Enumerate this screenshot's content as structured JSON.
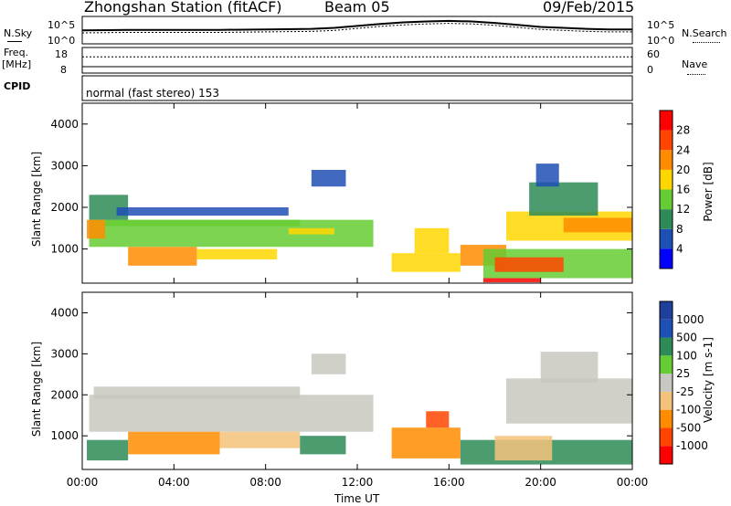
{
  "header": {
    "station": "Zhongshan Station (fitACF)",
    "beam": "Beam 05",
    "date": "09/Feb/2015"
  },
  "left_labels": {
    "nsky": "N.Sky",
    "freq": "Freq.",
    "freq_unit": "[MHz]",
    "cpid": "CPID"
  },
  "right_labels": {
    "nsearch": "N.Search",
    "nave": "Nave"
  },
  "cpid_text": "normal (fast stereo) 153",
  "colors": {
    "power": [
      "#0000ff",
      "#1e4fb4",
      "#2e8b57",
      "#66cc33",
      "#ffd700",
      "#ff8c00",
      "#ff4500",
      "#ff0000"
    ],
    "velocity": [
      "#ff0000",
      "#ff4500",
      "#ff8c00",
      "#f5c27a",
      "#c8c8c0",
      "#66cc33",
      "#2e8b57",
      "#1e4fb4",
      "#1e3f9c"
    ]
  },
  "chart_data": [
    {
      "type": "line",
      "panel": "noise",
      "yticks_left": [
        "10^5",
        "10^0"
      ],
      "yticks_right": [
        "10^5",
        "10^0"
      ],
      "series": [
        {
          "name": "N.Sky",
          "x": [
            0,
            2,
            4,
            6,
            8,
            10,
            11,
            12,
            13,
            14,
            15,
            16,
            17,
            18,
            19,
            20,
            21,
            22,
            23,
            24
          ],
          "y": [
            2.7,
            2.8,
            2.8,
            2.8,
            2.9,
            3.0,
            3.2,
            3.6,
            4.0,
            4.3,
            4.5,
            4.6,
            4.5,
            4.2,
            3.8,
            3.4,
            3.2,
            3.0,
            2.9,
            2.9
          ]
        },
        {
          "name": "N.Search",
          "x": [
            0,
            2,
            4,
            6,
            8,
            10,
            11,
            12,
            13,
            14,
            15,
            16,
            17,
            18,
            19,
            20,
            21,
            22,
            23,
            24
          ],
          "y": [
            2.2,
            2.3,
            2.3,
            2.3,
            2.4,
            2.5,
            2.7,
            3.1,
            3.5,
            3.8,
            4.0,
            4.1,
            4.0,
            3.7,
            3.3,
            2.9,
            2.7,
            2.5,
            2.4,
            2.4
          ]
        }
      ]
    },
    {
      "type": "line",
      "panel": "frequency",
      "yticks_left": [
        "18",
        "8"
      ],
      "yticks_right": [
        "60",
        "0"
      ],
      "series": [
        {
          "name": "Freq.",
          "x": [
            0,
            24
          ],
          "y": [
            10.5,
            10.5
          ]
        },
        {
          "name": "Nave",
          "x": [
            0,
            24
          ],
          "y": [
            38,
            38
          ]
        }
      ]
    },
    {
      "type": "heatmap",
      "panel": "power",
      "xlabel": "",
      "ylabel": "Slant Range [km]",
      "xlim": [
        0,
        24
      ],
      "ylim": [
        180,
        4500
      ],
      "yticks": [
        1000,
        2000,
        3000,
        4000
      ],
      "colorbar_label": "Power [dB]",
      "colorbar_ticks": [
        4,
        8,
        12,
        16,
        20,
        24,
        28
      ],
      "colorbar_range": [
        0,
        32
      ],
      "regions": [
        {
          "x0": 0.3,
          "x1": 12.7,
          "y0": 1050,
          "y1": 1700,
          "v": 12
        },
        {
          "x0": 1.0,
          "x1": 9.5,
          "y0": 1550,
          "y1": 1700,
          "v": 14
        },
        {
          "x0": 9.0,
          "x1": 11.0,
          "y0": 1350,
          "y1": 1500,
          "v": 18
        },
        {
          "x0": 0.3,
          "x1": 2.0,
          "y0": 1700,
          "y1": 2300,
          "v": 10
        },
        {
          "x0": 1.5,
          "x1": 9.0,
          "y0": 1800,
          "y1": 2000,
          "v": 6
        },
        {
          "x0": 2.0,
          "x1": 5.0,
          "y0": 600,
          "y1": 1050,
          "v": 20
        },
        {
          "x0": 5.0,
          "x1": 8.5,
          "y0": 750,
          "y1": 1000,
          "v": 16
        },
        {
          "x0": 0.2,
          "x1": 1.0,
          "y0": 1250,
          "y1": 1700,
          "v": 22
        },
        {
          "x0": 10.0,
          "x1": 11.5,
          "y0": 2500,
          "y1": 2900,
          "v": 6
        },
        {
          "x0": 13.5,
          "x1": 16.5,
          "y0": 450,
          "y1": 900,
          "v": 18
        },
        {
          "x0": 14.5,
          "x1": 16.0,
          "y0": 900,
          "y1": 1500,
          "v": 16
        },
        {
          "x0": 16.5,
          "x1": 18.5,
          "y0": 600,
          "y1": 1100,
          "v": 20
        },
        {
          "x0": 17.5,
          "x1": 24.0,
          "y0": 300,
          "y1": 1000,
          "v": 14
        },
        {
          "x0": 18.0,
          "x1": 21.0,
          "y0": 450,
          "y1": 800,
          "v": 24
        },
        {
          "x0": 18.5,
          "x1": 24.0,
          "y0": 1200,
          "y1": 1900,
          "v": 18
        },
        {
          "x0": 21.0,
          "x1": 24.0,
          "y0": 1400,
          "y1": 1750,
          "v": 22
        },
        {
          "x0": 19.5,
          "x1": 22.5,
          "y0": 1800,
          "y1": 2600,
          "v": 8
        },
        {
          "x0": 19.8,
          "x1": 20.8,
          "y0": 2500,
          "y1": 3050,
          "v": 6
        },
        {
          "x0": 17.5,
          "x1": 20.0,
          "y0": 200,
          "y1": 300,
          "v": 28
        }
      ]
    },
    {
      "type": "heatmap",
      "panel": "velocity",
      "xlabel": "Time UT",
      "ylabel": "Slant Range [km]",
      "xlim": [
        0,
        24
      ],
      "ylim": [
        180,
        4500
      ],
      "xticks": [
        "00:00",
        "04:00",
        "08:00",
        "12:00",
        "16:00",
        "20:00",
        "00:00"
      ],
      "yticks": [
        1000,
        2000,
        3000,
        4000
      ],
      "colorbar_label": "Velocity [m s-1]",
      "colorbar_ticks": [
        1000,
        500,
        100,
        25,
        -25,
        -100,
        -500,
        -1000
      ],
      "regions": [
        {
          "x0": 0.3,
          "x1": 12.7,
          "y0": 1100,
          "y1": 2000,
          "v": 0
        },
        {
          "x0": 0.5,
          "x1": 9.5,
          "y0": 1900,
          "y1": 2200,
          "v": 0
        },
        {
          "x0": 2.0,
          "x1": 6.0,
          "y0": 550,
          "y1": 1100,
          "v": -200
        },
        {
          "x0": 6.0,
          "x1": 9.5,
          "y0": 700,
          "y1": 1100,
          "v": -60
        },
        {
          "x0": 0.2,
          "x1": 2.0,
          "y0": 400,
          "y1": 900,
          "v": 200
        },
        {
          "x0": 9.5,
          "x1": 11.5,
          "y0": 550,
          "y1": 1000,
          "v": 150
        },
        {
          "x0": 10.0,
          "x1": 11.5,
          "y0": 2500,
          "y1": 3000,
          "v": 0
        },
        {
          "x0": 13.5,
          "x1": 16.5,
          "y0": 450,
          "y1": 1200,
          "v": -300
        },
        {
          "x0": 15.0,
          "x1": 16.0,
          "y0": 1200,
          "y1": 1600,
          "v": -600
        },
        {
          "x0": 16.5,
          "x1": 24.0,
          "y0": 300,
          "y1": 900,
          "v": 200
        },
        {
          "x0": 18.0,
          "x1": 20.5,
          "y0": 400,
          "y1": 1000,
          "v": -80
        },
        {
          "x0": 18.5,
          "x1": 24.0,
          "y0": 1300,
          "y1": 2400,
          "v": 0
        },
        {
          "x0": 20.0,
          "x1": 22.5,
          "y0": 2300,
          "y1": 3050,
          "v": 0
        }
      ]
    }
  ]
}
